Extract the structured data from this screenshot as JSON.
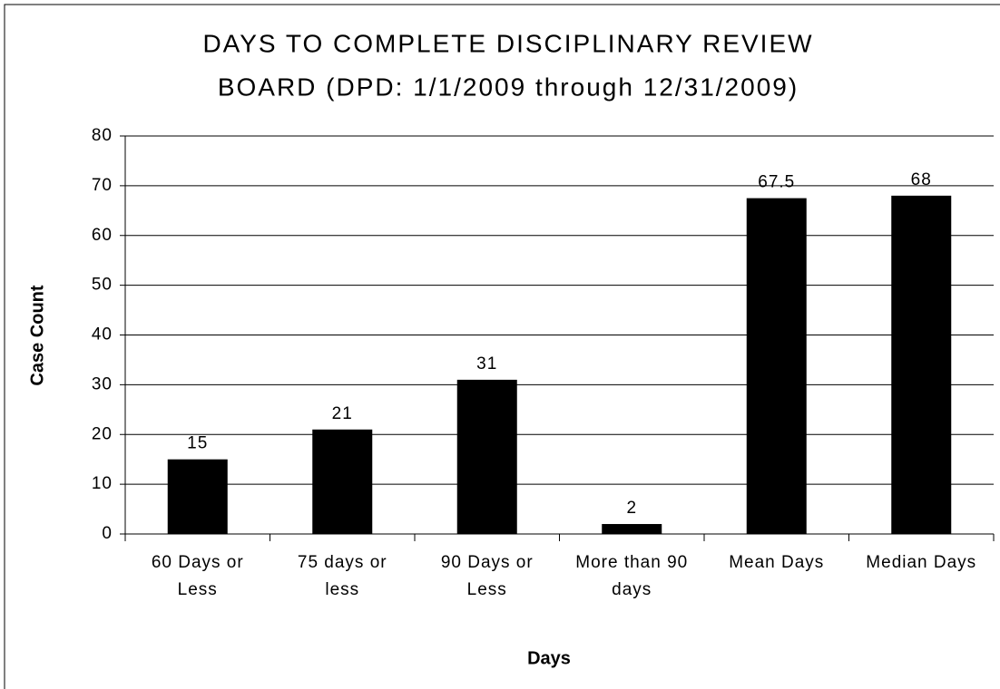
{
  "chart_data": {
    "type": "bar",
    "title": [
      "DAYS TO COMPLETE DISCIPLINARY REVIEW",
      "BOARD (DPD: 1/1/2009 through 12/31/2009)"
    ],
    "x_label": "Days",
    "y_label": "Case Count",
    "categories": [
      [
        "60 Days or",
        "Less"
      ],
      [
        "75 days or",
        "less"
      ],
      [
        "90 Days or",
        "Less"
      ],
      [
        "More than 90",
        "days"
      ],
      [
        "Mean Days"
      ],
      [
        "Median Days"
      ]
    ],
    "values": [
      15,
      21,
      31,
      2,
      67.5,
      68
    ],
    "color": "#000000",
    "ylim": [
      0,
      80
    ],
    "yticks": [
      0,
      10,
      20,
      30,
      40,
      50,
      60,
      70,
      80
    ],
    "grid": true
  }
}
